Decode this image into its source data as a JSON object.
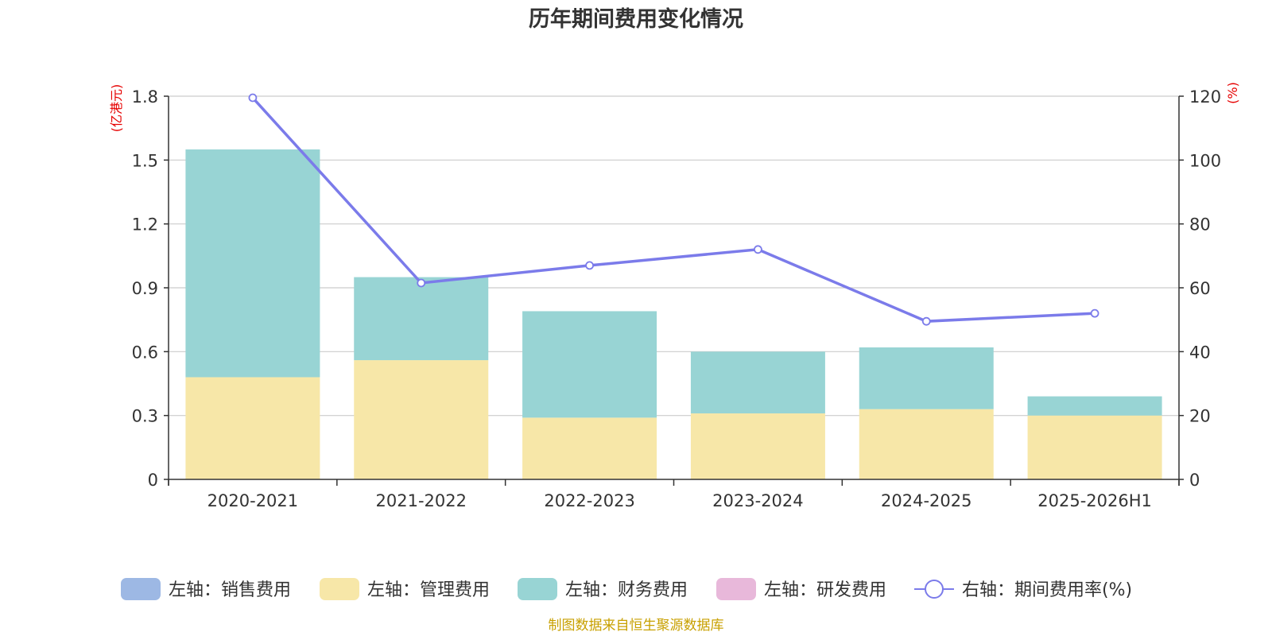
{
  "chart_data": {
    "type": "bar",
    "title": "历年期间费用变化情况",
    "categories": [
      "2020-2021",
      "2021-2022",
      "2022-2023",
      "2023-2024",
      "2024-2025",
      "2025-2026H1"
    ],
    "left_axis": {
      "unit": "(亿港元)",
      "ylim": [
        0,
        1.8
      ],
      "ticks": [
        "0",
        "0.3",
        "0.6",
        "0.9",
        "1.2",
        "1.5",
        "1.8"
      ]
    },
    "right_axis": {
      "unit": "(%)",
      "ylim": [
        0,
        120
      ],
      "ticks": [
        "0",
        "20",
        "40",
        "60",
        "80",
        "100",
        "120"
      ]
    },
    "series": [
      {
        "name": "左轴：销售费用",
        "kind": "bar",
        "axis": "left",
        "color": "#9db8e4",
        "values": [
          0,
          0,
          0,
          0,
          0,
          0
        ]
      },
      {
        "name": "左轴：管理费用",
        "kind": "bar",
        "axis": "left",
        "color": "#f7e7a8",
        "values": [
          0.48,
          0.56,
          0.29,
          0.31,
          0.33,
          0.3
        ]
      },
      {
        "name": "左轴：财务费用",
        "kind": "bar",
        "axis": "left",
        "color": "#98d4d4",
        "values": [
          1.07,
          0.39,
          0.5,
          0.29,
          0.29,
          0.09
        ]
      },
      {
        "name": "左轴：研发费用",
        "kind": "bar",
        "axis": "left",
        "color": "#e8b8da",
        "values": [
          0,
          0,
          0,
          0,
          0,
          0
        ]
      },
      {
        "name": "右轴：期间费用率(%)",
        "kind": "line",
        "axis": "right",
        "color": "#7b7bea",
        "values": [
          119.5,
          61.5,
          67,
          72,
          49.5,
          52
        ]
      }
    ],
    "grid": true,
    "legend_position": "bottom-center"
  },
  "source": "制图数据来自恒生聚源数据库"
}
